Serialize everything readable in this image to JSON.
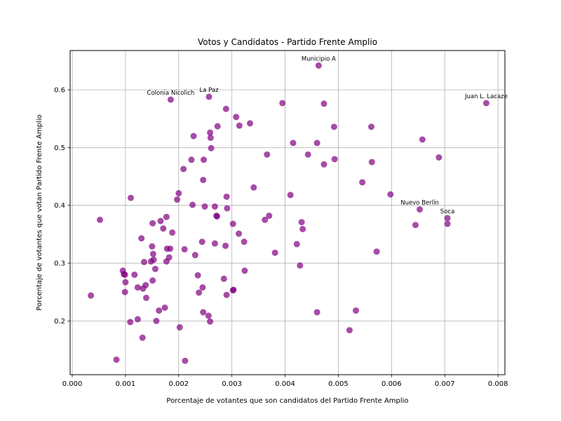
{
  "chart_data": {
    "type": "scatter",
    "title": "Votos y Candidatos - Partido Frente Amplio",
    "xlabel": "Porcentaje de votantes que son candidatos del Partido Frente Amplio",
    "ylabel": "Porcentaje de votantes que votan Partido Frente Amplio",
    "xlim": [
      -4e-05,
      0.00813
    ],
    "ylim": [
      0.107,
      0.668
    ],
    "xticks": [
      "0.000",
      "0.001",
      "0.002",
      "0.003",
      "0.004",
      "0.005",
      "0.006",
      "0.007",
      "0.008"
    ],
    "xtick_values": [
      0,
      0.001,
      0.002,
      0.003,
      0.004,
      0.005,
      0.006,
      0.007,
      0.008
    ],
    "yticks": [
      "0.2",
      "0.3",
      "0.4",
      "0.5",
      "0.6"
    ],
    "ytick_values": [
      0.2,
      0.3,
      0.4,
      0.5,
      0.6
    ],
    "grid": true,
    "marker_color": "#800080",
    "points": [
      [
        0.00463,
        0.642
      ],
      [
        0.00778,
        0.577
      ],
      [
        0.00185,
        0.583
      ],
      [
        0.00257,
        0.588
      ],
      [
        0.00289,
        0.567
      ],
      [
        0.00395,
        0.577
      ],
      [
        0.00473,
        0.576
      ],
      [
        0.00308,
        0.553
      ],
      [
        0.00273,
        0.537
      ],
      [
        0.00314,
        0.538
      ],
      [
        0.00334,
        0.542
      ],
      [
        0.00492,
        0.536
      ],
      [
        0.00562,
        0.536
      ],
      [
        0.00228,
        0.52
      ],
      [
        0.00259,
        0.526
      ],
      [
        0.0026,
        0.517
      ],
      [
        0.00261,
        0.499
      ],
      [
        0.00415,
        0.508
      ],
      [
        0.0046,
        0.508
      ],
      [
        0.00658,
        0.514
      ],
      [
        0.00366,
        0.488
      ],
      [
        0.00443,
        0.488
      ],
      [
        0.00224,
        0.479
      ],
      [
        0.00247,
        0.479
      ],
      [
        0.00473,
        0.471
      ],
      [
        0.00493,
        0.48
      ],
      [
        0.00563,
        0.475
      ],
      [
        0.00689,
        0.483
      ],
      [
        0.00209,
        0.463
      ],
      [
        0.00246,
        0.444
      ],
      [
        0.00545,
        0.44
      ],
      [
        0.00341,
        0.431
      ],
      [
        0.002,
        0.421
      ],
      [
        0.00197,
        0.41
      ],
      [
        0.0011,
        0.413
      ],
      [
        0.0029,
        0.415
      ],
      [
        0.0041,
        0.418
      ],
      [
        0.00598,
        0.419
      ],
      [
        0.00226,
        0.401
      ],
      [
        0.00249,
        0.398
      ],
      [
        0.00268,
        0.398
      ],
      [
        0.00291,
        0.395
      ],
      [
        0.00653,
        0.393
      ],
      [
        0.00271,
        0.382
      ],
      [
        0.00272,
        0.381
      ],
      [
        0.0037,
        0.382
      ],
      [
        0.00362,
        0.375
      ],
      [
        0.00431,
        0.371
      ],
      [
        0.00705,
        0.378
      ],
      [
        0.00705,
        0.368
      ],
      [
        0.00645,
        0.366
      ],
      [
        0.00177,
        0.38
      ],
      [
        0.00166,
        0.373
      ],
      [
        0.00151,
        0.369
      ],
      [
        0.00302,
        0.368
      ],
      [
        0.00433,
        0.359
      ],
      [
        0.00052,
        0.375
      ],
      [
        0.00171,
        0.36
      ],
      [
        0.00188,
        0.353
      ],
      [
        0.00313,
        0.351
      ],
      [
        0.0013,
        0.343
      ],
      [
        0.00244,
        0.337
      ],
      [
        0.00323,
        0.337
      ],
      [
        0.00268,
        0.334
      ],
      [
        0.00288,
        0.33
      ],
      [
        0.00422,
        0.333
      ],
      [
        0.0015,
        0.329
      ],
      [
        0.00178,
        0.325
      ],
      [
        0.00184,
        0.325
      ],
      [
        0.00211,
        0.324
      ],
      [
        0.00381,
        0.318
      ],
      [
        0.00572,
        0.32
      ],
      [
        0.00152,
        0.316
      ],
      [
        0.00231,
        0.314
      ],
      [
        0.00182,
        0.31
      ],
      [
        0.00153,
        0.306
      ],
      [
        0.00148,
        0.303
      ],
      [
        0.00177,
        0.303
      ],
      [
        0.00135,
        0.302
      ],
      [
        0.00428,
        0.296
      ],
      [
        0.00156,
        0.29
      ],
      [
        0.00324,
        0.287
      ],
      [
        0.00095,
        0.287
      ],
      [
        0.00097,
        0.281
      ],
      [
        0.00099,
        0.28
      ],
      [
        0.00117,
        0.28
      ],
      [
        0.00236,
        0.279
      ],
      [
        0.00285,
        0.273
      ],
      [
        0.00151,
        0.27
      ],
      [
        0.001,
        0.267
      ],
      [
        0.00138,
        0.262
      ],
      [
        0.00123,
        0.258
      ],
      [
        0.00133,
        0.256
      ],
      [
        0.00245,
        0.258
      ],
      [
        0.00303,
        0.254
      ],
      [
        0.00302,
        0.253
      ],
      [
        0.00099,
        0.25
      ],
      [
        0.00238,
        0.249
      ],
      [
        0.0029,
        0.245
      ],
      [
        0.00035,
        0.244
      ],
      [
        0.00139,
        0.24
      ],
      [
        0.00174,
        0.223
      ],
      [
        0.00163,
        0.218
      ],
      [
        0.00246,
        0.215
      ],
      [
        0.0046,
        0.215
      ],
      [
        0.00533,
        0.218
      ],
      [
        0.00256,
        0.209
      ],
      [
        0.00123,
        0.203
      ],
      [
        0.00158,
        0.2
      ],
      [
        0.00259,
        0.199
      ],
      [
        0.00109,
        0.198
      ],
      [
        0.00202,
        0.189
      ],
      [
        0.00521,
        0.184
      ],
      [
        0.00132,
        0.171
      ],
      [
        0.00083,
        0.133
      ],
      [
        0.00212,
        0.131
      ]
    ],
    "annotations": [
      {
        "text": "Municipio A",
        "x": 0.00463,
        "y": 0.642
      },
      {
        "text": "Juan L. Lacaze",
        "x": 0.00778,
        "y": 0.577
      },
      {
        "text": "Colonia Nicolich",
        "x": 0.00185,
        "y": 0.583
      },
      {
        "text": "La Paz",
        "x": 0.00257,
        "y": 0.588
      },
      {
        "text": "Nuevo Berlín",
        "x": 0.00653,
        "y": 0.393
      },
      {
        "text": "Soca",
        "x": 0.00705,
        "y": 0.378
      }
    ]
  }
}
